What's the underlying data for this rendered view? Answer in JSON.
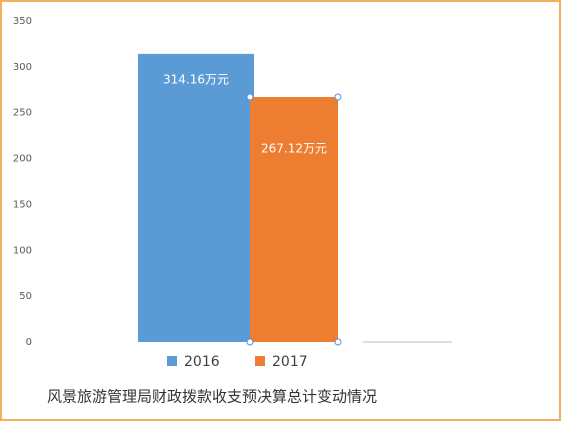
{
  "chart_data": {
    "type": "bar",
    "title": "风景旅游管理局财政拨款收支预决算总计变动情况",
    "categories": [
      null
    ],
    "series": [
      {
        "name": "2016",
        "color": "#5b9bd5",
        "values": [
          314.16
        ],
        "value_labels": [
          "314.16万元"
        ]
      },
      {
        "name": "2017",
        "color": "#ed7d31",
        "values": [
          267.12
        ],
        "value_labels": [
          "267.12万元"
        ]
      }
    ],
    "ylim": [
      0,
      350
    ],
    "yticks": [
      0,
      50,
      100,
      150,
      200,
      250,
      300,
      350
    ],
    "grid": false,
    "legend": "bottom"
  }
}
